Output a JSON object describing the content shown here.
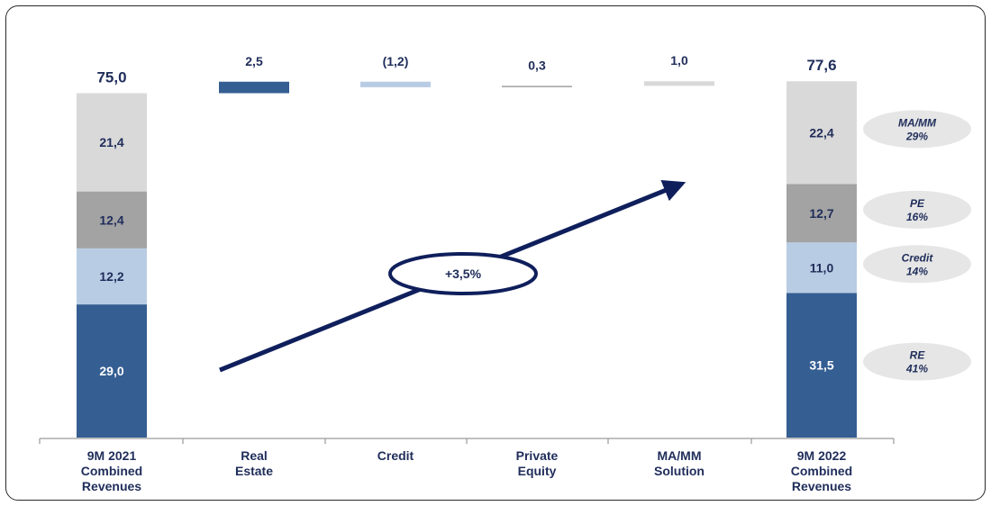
{
  "chart_data": {
    "type": "bar",
    "subtype": "waterfall",
    "categories": [
      [
        "9M 2021",
        "Combined",
        "Revenues"
      ],
      [
        "Real",
        "Estate"
      ],
      [
        "Credit"
      ],
      [
        "Private",
        "Equity"
      ],
      [
        "MA/MM",
        "Solution"
      ],
      [
        "9M 2022",
        "Combined",
        "Revenues"
      ]
    ],
    "stack_order": [
      "RE",
      "Credit",
      "PE",
      "MA/MM"
    ],
    "start": {
      "total_label": "75,0",
      "segments": [
        {
          "series": "RE",
          "value": 29.0,
          "label": "29,0"
        },
        {
          "series": "Credit",
          "value": 12.2,
          "label": "12,2"
        },
        {
          "series": "PE",
          "value": 12.4,
          "label": "12,4"
        },
        {
          "series": "MA/MM",
          "value": 21.4,
          "label": "21,4"
        }
      ]
    },
    "deltas": [
      {
        "series": "RE",
        "value": 2.5,
        "label": "2,5"
      },
      {
        "series": "Credit",
        "value": -1.2,
        "label": "(1,2)"
      },
      {
        "series": "PE",
        "value": 0.3,
        "label": "0,3"
      },
      {
        "series": "MA/MM",
        "value": 1.0,
        "label": "1,0"
      }
    ],
    "end": {
      "total_label": "77,6",
      "segments": [
        {
          "series": "RE",
          "value": 31.5,
          "label": "31,5"
        },
        {
          "series": "Credit",
          "value": 11.0,
          "label": "11,0"
        },
        {
          "series": "PE",
          "value": 12.7,
          "label": "12,7"
        },
        {
          "series": "MA/MM",
          "value": 22.4,
          "label": "22,4"
        }
      ]
    },
    "share_badges": [
      {
        "series": "MA/MM",
        "name": "MA/MM",
        "share": "29%"
      },
      {
        "series": "PE",
        "name": "PE",
        "share": "16%"
      },
      {
        "series": "Credit",
        "name": "Credit",
        "share": "14%"
      },
      {
        "series": "RE",
        "name": "RE",
        "share": "41%"
      }
    ],
    "growth_annotation": "+3,5%",
    "colors": {
      "RE": "#355e92",
      "Credit": "#b8cce4",
      "PE": "#a3a3a3",
      "MA/MM": "#d9d9d9",
      "text": "#1f2d5a",
      "arrow": "#0f1f5c"
    }
  }
}
